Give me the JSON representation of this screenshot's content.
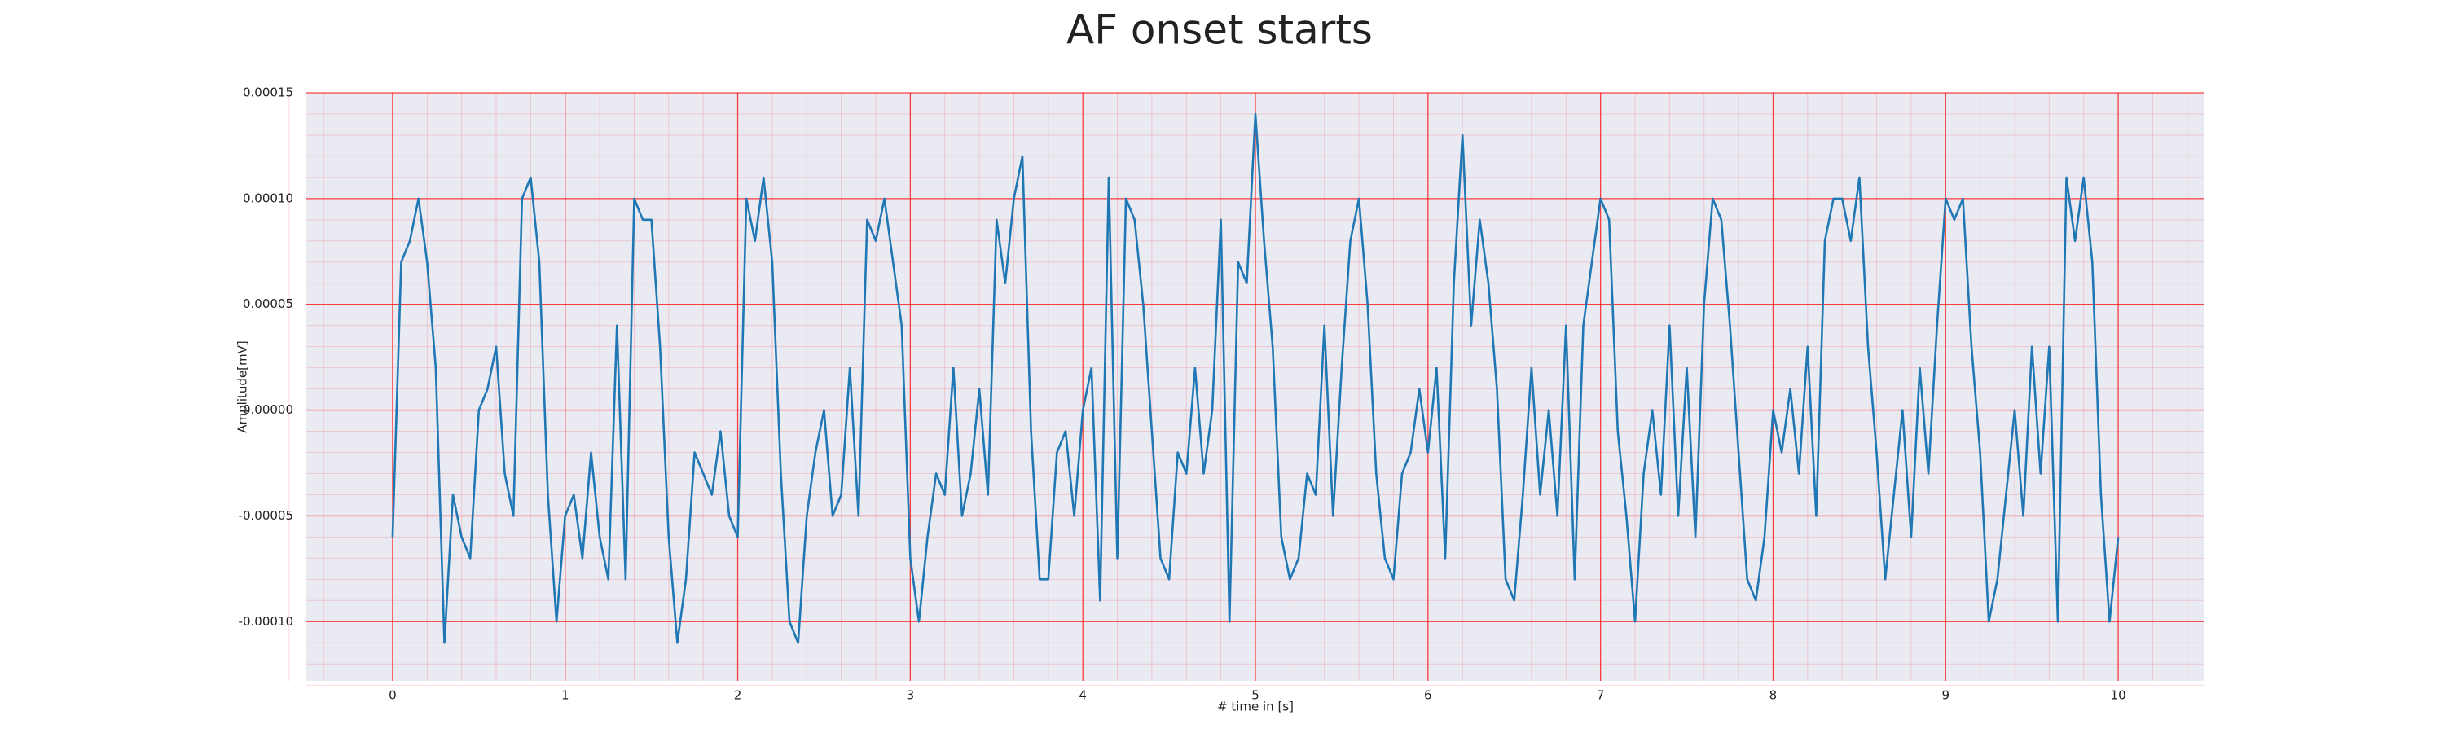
{
  "chart_data": {
    "type": "line",
    "title": "AF onset starts",
    "xlabel": "# time in [s]",
    "ylabel": "Amplitude[mV]",
    "xlim": [
      -0.5,
      10.5
    ],
    "ylim": [
      -0.000128,
      0.00015
    ],
    "xticks": [
      0,
      1,
      2,
      3,
      4,
      5,
      6,
      7,
      8,
      9,
      10
    ],
    "yticks": [
      {
        "value": -0.0001,
        "label": "-0.00010"
      },
      {
        "value": -5e-05,
        "label": "-0.00005"
      },
      {
        "value": 0,
        "label": "0.00000"
      },
      {
        "value": 5e-05,
        "label": "0.00005"
      },
      {
        "value": 0.0001,
        "label": "0.00010"
      },
      {
        "value": 0.00015,
        "label": "0.00015"
      }
    ],
    "grid": true,
    "minor_grid": true,
    "grid_color": "#ff0000",
    "background": "#eaeaf2",
    "series": [
      {
        "color": "#1f77b4",
        "x": [
          0,
          0.05,
          0.1,
          0.15,
          0.2,
          0.25,
          0.3,
          0.35,
          0.4,
          0.45,
          0.5,
          0.55,
          0.6,
          0.65,
          0.7,
          0.75,
          0.8,
          0.85,
          0.9,
          0.95,
          1,
          1.05,
          1.1,
          1.15,
          1.2,
          1.25,
          1.3,
          1.35,
          1.4,
          1.45,
          1.5,
          1.55,
          1.6,
          1.65,
          1.7,
          1.75,
          1.8,
          1.85,
          1.9,
          1.95,
          2,
          2.05,
          2.1,
          2.15,
          2.2,
          2.25,
          2.3,
          2.35,
          2.4,
          2.45,
          2.5,
          2.55,
          2.6,
          2.65,
          2.7,
          2.75,
          2.8,
          2.85,
          2.9,
          2.95,
          3,
          3.05,
          3.1,
          3.15,
          3.2,
          3.25,
          3.3,
          3.35,
          3.4,
          3.45,
          3.5,
          3.55,
          3.6,
          3.65,
          3.7,
          3.75,
          3.8,
          3.85,
          3.9,
          3.95,
          4,
          4.05,
          4.1,
          4.15,
          4.2,
          4.25,
          4.3,
          4.35,
          4.4,
          4.45,
          4.5,
          4.55,
          4.6,
          4.65,
          4.7,
          4.75,
          4.8,
          4.85,
          4.9,
          4.95,
          5,
          5.05,
          5.1,
          5.15,
          5.2,
          5.25,
          5.3,
          5.35,
          5.4,
          5.45,
          5.5,
          5.55,
          5.6,
          5.65,
          5.7,
          5.75,
          5.8,
          5.85,
          5.9,
          5.95,
          6,
          6.05,
          6.1,
          6.15,
          6.2,
          6.25,
          6.3,
          6.35,
          6.4,
          6.45,
          6.5,
          6.55,
          6.6,
          6.65,
          6.7,
          6.75,
          6.8,
          6.85,
          6.9,
          6.95,
          7,
          7.05,
          7.1,
          7.15,
          7.2,
          7.25,
          7.3,
          7.35,
          7.4,
          7.45,
          7.5,
          7.55,
          7.6,
          7.65,
          7.7,
          7.75,
          7.8,
          7.85,
          7.9,
          7.95,
          8,
          8.05,
          8.1,
          8.15,
          8.2,
          8.25,
          8.3,
          8.35,
          8.4,
          8.45,
          8.5,
          8.55,
          8.6,
          8.65,
          8.7,
          8.75,
          8.8,
          8.85,
          8.9,
          8.95,
          9,
          9.05,
          9.1,
          9.15,
          9.2,
          9.25,
          9.3,
          9.35,
          9.4,
          9.45,
          9.5,
          9.55,
          9.6,
          9.65,
          9.7,
          9.75,
          9.8,
          9.85,
          9.9,
          9.95,
          10
        ],
        "values": [
          -6e-05,
          7e-05,
          8e-05,
          0.0001,
          7e-05,
          2e-05,
          -0.00011,
          -4e-05,
          -6e-05,
          -7e-05,
          0,
          1e-05,
          3e-05,
          -3e-05,
          -5e-05,
          0.0001,
          0.00011,
          7e-05,
          -4e-05,
          -0.0001,
          -5e-05,
          -4e-05,
          -7e-05,
          -2e-05,
          -6e-05,
          -8e-05,
          4e-05,
          -8e-05,
          0.0001,
          9e-05,
          9e-05,
          3e-05,
          -6e-05,
          -0.00011,
          -8e-05,
          -2e-05,
          -3e-05,
          -4e-05,
          -1e-05,
          -5e-05,
          -6e-05,
          0.0001,
          8e-05,
          0.00011,
          7e-05,
          -3e-05,
          -0.0001,
          -0.00011,
          -5e-05,
          -2e-05,
          0,
          -5e-05,
          -4e-05,
          2e-05,
          -5e-05,
          9e-05,
          8e-05,
          0.0001,
          7e-05,
          4e-05,
          -7e-05,
          -0.0001,
          -6e-05,
          -3e-05,
          -4e-05,
          2e-05,
          -5e-05,
          -3e-05,
          1e-05,
          -4e-05,
          9e-05,
          6e-05,
          0.0001,
          0.00012,
          -1e-05,
          -8e-05,
          -8e-05,
          -2e-05,
          -1e-05,
          -5e-05,
          0,
          2e-05,
          -9e-05,
          0.00011,
          -7e-05,
          0.0001,
          9e-05,
          5e-05,
          -1e-05,
          -7e-05,
          -8e-05,
          -2e-05,
          -3e-05,
          2e-05,
          -3e-05,
          0,
          9e-05,
          -0.0001,
          7e-05,
          6e-05,
          0.00014,
          8e-05,
          3e-05,
          -6e-05,
          -8e-05,
          -7e-05,
          -3e-05,
          -4e-05,
          4e-05,
          -5e-05,
          2e-05,
          8e-05,
          0.0001,
          5e-05,
          -3e-05,
          -7e-05,
          -8e-05,
          -3e-05,
          -2e-05,
          1e-05,
          -2e-05,
          2e-05,
          -7e-05,
          6e-05,
          0.00013,
          4e-05,
          9e-05,
          6e-05,
          1e-05,
          -8e-05,
          -9e-05,
          -4e-05,
          2e-05,
          -4e-05,
          0,
          -5e-05,
          4e-05,
          -8e-05,
          4e-05,
          7e-05,
          0.0001,
          9e-05,
          -1e-05,
          -5e-05,
          -0.0001,
          -3e-05,
          0,
          -4e-05,
          4e-05,
          -5e-05,
          2e-05,
          -6e-05,
          5e-05,
          0.0001,
          9e-05,
          4e-05,
          -2e-05,
          -8e-05,
          -9e-05,
          -6e-05,
          0,
          -2e-05,
          1e-05,
          -3e-05,
          3e-05,
          -5e-05,
          8e-05,
          0.0001,
          0.0001,
          8e-05,
          0.00011,
          3e-05,
          -2e-05,
          -8e-05,
          -4e-05,
          0,
          -6e-05,
          2e-05,
          -3e-05,
          4e-05,
          0.0001,
          9e-05,
          0.0001,
          3e-05,
          -2e-05,
          -0.0001,
          -8e-05,
          -4e-05,
          0,
          -5e-05,
          3e-05,
          -3e-05,
          3e-05,
          -0.0001,
          0.00011,
          8e-05,
          0.00011,
          7e-05,
          -4e-05,
          -0.0001,
          -6e-05
        ]
      }
    ]
  }
}
